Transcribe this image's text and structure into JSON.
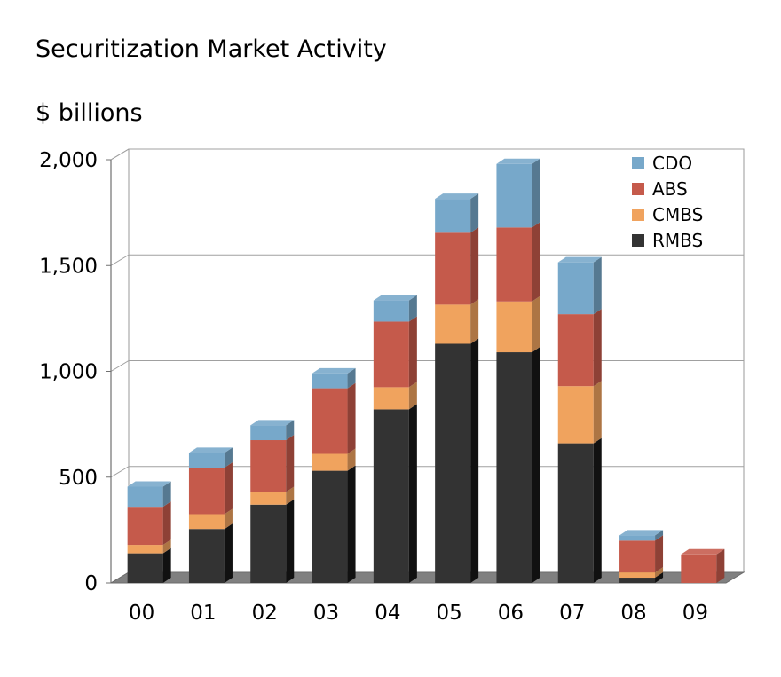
{
  "chart_data": {
    "type": "bar",
    "stacked": true,
    "title": "Securitization Market Activity",
    "ylabel": "$ billions",
    "xlabel": "",
    "categories": [
      "00",
      "01",
      "02",
      "03",
      "04",
      "05",
      "06",
      "07",
      "08",
      "09"
    ],
    "ylim": [
      0,
      2000
    ],
    "yticks": [
      0,
      500,
      1000,
      1500,
      2000
    ],
    "ytick_labels": [
      "0",
      "500",
      "1,000",
      "1,500",
      "2,000"
    ],
    "legend_position": "top-right",
    "grid": true,
    "series": [
      {
        "name": "RMBS",
        "color": "#333333",
        "values": [
          140,
          255,
          370,
          530,
          820,
          1130,
          1090,
          660,
          25,
          0
        ]
      },
      {
        "name": "CMBS",
        "color": "#F0A35E",
        "values": [
          40,
          70,
          60,
          80,
          105,
          185,
          240,
          270,
          25,
          0
        ]
      },
      {
        "name": "ABS",
        "color": "#C55A4B",
        "values": [
          180,
          220,
          245,
          310,
          310,
          340,
          350,
          340,
          150,
          135
        ]
      },
      {
        "name": "CDO",
        "color": "#77A8CA",
        "values": [
          95,
          70,
          70,
          70,
          100,
          160,
          300,
          245,
          25,
          0
        ]
      }
    ]
  }
}
